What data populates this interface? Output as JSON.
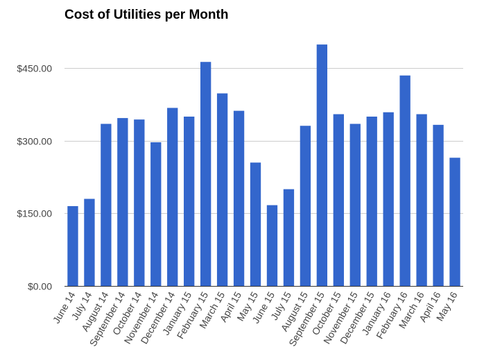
{
  "chart_data": {
    "type": "bar",
    "title": "Cost of Utilities per Month",
    "xlabel": "",
    "ylabel": "",
    "categories": [
      "June 14",
      "July 14",
      "August 14",
      "September 14",
      "October 14",
      "November 14",
      "December 14",
      "January 15",
      "February 15",
      "March 15",
      "April 15",
      "May 15",
      "June 15",
      "July 15",
      "August 15",
      "September 15",
      "October 15",
      "November 15",
      "December 15",
      "January 16",
      "February 16",
      "March 16",
      "April 16",
      "May 16"
    ],
    "values": [
      165,
      180,
      335,
      347,
      344,
      297,
      368,
      350,
      463,
      398,
      362,
      255,
      167,
      200,
      331,
      499,
      355,
      335,
      350,
      359,
      435,
      355,
      333,
      265
    ],
    "ylim": [
      0,
      525
    ],
    "yticks": [
      0,
      150,
      300,
      450
    ],
    "ytick_labels": [
      "$0.00",
      "$150.00",
      "$300.00",
      "$450.00"
    ],
    "grid": true,
    "legend": "none",
    "colors": {
      "bar": "#3366cc",
      "grid": "#cccccc",
      "axis": "#333333",
      "tick_text": "#444444"
    }
  }
}
